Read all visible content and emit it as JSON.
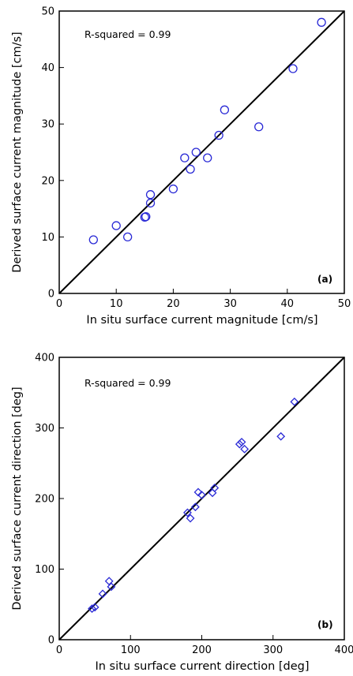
{
  "chart_data": [
    {
      "type": "scatter",
      "panel_label": "(a)",
      "annotation": "R-squared = 0.99",
      "xlabel": "In situ surface current magnitude [cm/s]",
      "ylabel": "Derived surface current magnitude [cm/s]",
      "xlim": [
        0,
        50
      ],
      "ylim": [
        0,
        50
      ],
      "xticks": [
        0,
        10,
        20,
        30,
        40,
        50
      ],
      "yticks": [
        0,
        10,
        20,
        30,
        40,
        50
      ],
      "marker": "circle",
      "marker_color": "#2a2ad6",
      "reference_line": "1:1",
      "points": [
        {
          "x": 6,
          "y": 9.5
        },
        {
          "x": 10,
          "y": 12
        },
        {
          "x": 12,
          "y": 10
        },
        {
          "x": 15,
          "y": 13.5
        },
        {
          "x": 15.2,
          "y": 13.6
        },
        {
          "x": 16,
          "y": 16
        },
        {
          "x": 16,
          "y": 17.5
        },
        {
          "x": 20,
          "y": 18.5
        },
        {
          "x": 22,
          "y": 24
        },
        {
          "x": 23,
          "y": 22
        },
        {
          "x": 24,
          "y": 25
        },
        {
          "x": 26,
          "y": 24
        },
        {
          "x": 28,
          "y": 28
        },
        {
          "x": 29,
          "y": 32.5
        },
        {
          "x": 35,
          "y": 29.5
        },
        {
          "x": 41,
          "y": 39.8
        },
        {
          "x": 46,
          "y": 48
        }
      ]
    },
    {
      "type": "scatter",
      "panel_label": "(b)",
      "annotation": "R-squared = 0.99",
      "xlabel": "In situ surface current direction [deg]",
      "ylabel": "Derived surface current direction [deg]",
      "xlim": [
        0,
        400
      ],
      "ylim": [
        0,
        400
      ],
      "xticks": [
        0,
        100,
        200,
        300,
        400
      ],
      "yticks": [
        0,
        100,
        200,
        300,
        400
      ],
      "marker": "diamond",
      "marker_color": "#2a2ad6",
      "reference_line": "1:1",
      "points": [
        {
          "x": 46,
          "y": 44
        },
        {
          "x": 50,
          "y": 46
        },
        {
          "x": 61,
          "y": 65
        },
        {
          "x": 70,
          "y": 83
        },
        {
          "x": 73,
          "y": 75
        },
        {
          "x": 180,
          "y": 180
        },
        {
          "x": 184,
          "y": 172
        },
        {
          "x": 191,
          "y": 188
        },
        {
          "x": 195,
          "y": 209
        },
        {
          "x": 200,
          "y": 205
        },
        {
          "x": 215,
          "y": 208
        },
        {
          "x": 218,
          "y": 215
        },
        {
          "x": 253,
          "y": 277
        },
        {
          "x": 256,
          "y": 280
        },
        {
          "x": 260,
          "y": 270
        },
        {
          "x": 311,
          "y": 288
        },
        {
          "x": 330,
          "y": 337
        }
      ]
    }
  ]
}
